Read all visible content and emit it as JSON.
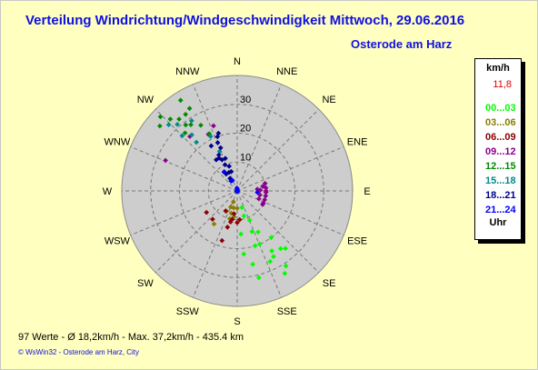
{
  "title": "Verteilung Windrichtung/Windgeschwindigkeit  Mittwoch, 29.06.2016",
  "location": "Osterode am Harz",
  "legend": {
    "unit": "km/h",
    "max": "11,8",
    "footer": "Uhr",
    "items": [
      {
        "label": "00...03",
        "color": "#00ff00"
      },
      {
        "label": "03...06",
        "color": "#8b7d00"
      },
      {
        "label": "06...09",
        "color": "#8b0000"
      },
      {
        "label": "09...12",
        "color": "#8b008b"
      },
      {
        "label": "12...15",
        "color": "#008b00"
      },
      {
        "label": "15...18",
        "color": "#008b8b"
      },
      {
        "label": "18...21",
        "color": "#00008b"
      },
      {
        "label": "21...24",
        "color": "#0000ff"
      }
    ]
  },
  "stats": "97 Werte   -   Ø 18,2km/h  -  Max. 37,2km/h   -   435.4 km",
  "footer": "© WsWin32   -   Osterode am Harz, City",
  "chart_data": {
    "type": "scatter",
    "subtype": "polar wind rose",
    "radial_unit": "km/h",
    "radial_ticks": [
      10,
      20,
      30
    ],
    "rmax": 40,
    "directions": [
      "N",
      "NNE",
      "NE",
      "ENE",
      "E",
      "ESE",
      "SE",
      "SSE",
      "S",
      "SSW",
      "SW",
      "WSW",
      "W",
      "WNW",
      "NW",
      "NNW"
    ],
    "series": [
      {
        "color": "#00ff00",
        "points": [
          [
            164,
            6
          ],
          [
            157,
            11
          ],
          [
            153,
            16
          ],
          [
            144,
            20
          ],
          [
            150,
            24
          ],
          [
            162,
            20
          ],
          [
            168,
            26
          ],
          [
            166,
            31
          ],
          [
            151,
            26
          ],
          [
            150,
            33
          ],
          [
            143,
            25
          ],
          [
            147,
            31
          ],
          [
            160,
            15
          ],
          [
            155,
            27
          ],
          [
            140,
            26
          ],
          [
            174,
            22
          ],
          [
            175,
            15
          ],
          [
            165,
            9
          ],
          [
            157,
            20
          ]
        ]
      },
      {
        "color": "#8b7d00",
        "points": [
          [
            199,
            4
          ],
          [
            192,
            6
          ],
          [
            208,
            8
          ],
          [
            215,
            14
          ],
          [
            195,
            8
          ],
          [
            180,
            6
          ],
          [
            187,
            9
          ],
          [
            195,
            10
          ],
          [
            202,
            6
          ]
        ]
      },
      {
        "color": "#8b0000",
        "points": [
          [
            221,
            13
          ],
          [
            235,
            13
          ],
          [
            188,
            8
          ],
          [
            197,
            18
          ],
          [
            210,
            8
          ],
          [
            175,
            10
          ],
          [
            190,
            10
          ],
          [
            195,
            13
          ],
          [
            180,
            11
          ],
          [
            192,
            11
          ]
        ]
      },
      {
        "color": "#8b008b",
        "points": [
          [
            333,
            22
          ],
          [
            319,
            25
          ],
          [
            340,
            24
          ],
          [
            108,
            10
          ],
          [
            84,
            10
          ],
          [
            115,
            10
          ],
          [
            100,
            8
          ],
          [
            85,
            7
          ],
          [
            90,
            10
          ],
          [
            75,
            10
          ],
          [
            88,
            8
          ],
          [
            118,
            10
          ],
          [
            100,
            10
          ],
          [
            93,
            10
          ],
          [
            80,
            9
          ],
          [
            110,
            8
          ],
          [
            293,
            27
          ]
        ]
      },
      {
        "color": "#008b00",
        "points": [
          [
            314,
            37
          ],
          [
            334,
            22
          ],
          [
            310,
            35
          ],
          [
            326,
            32
          ],
          [
            322,
            29
          ],
          [
            328,
            37
          ],
          [
            318,
            27
          ],
          [
            317,
            34
          ],
          [
            331,
            26
          ],
          [
            325,
            28
          ],
          [
            321,
            32
          ],
          [
            330,
            33
          ]
        ]
      },
      {
        "color": "#008b8b",
        "points": [
          [
            327,
            29
          ],
          [
            314,
            33
          ],
          [
            321,
            25
          ],
          [
            315,
            27
          ],
          [
            320,
            22
          ],
          [
            336,
            15
          ],
          [
            318,
            31
          ],
          [
            334,
            21
          ]
        ]
      },
      {
        "color": "#00008b",
        "points": [
          [
            340,
            20
          ],
          [
            333,
            14
          ],
          [
            335,
            10
          ],
          [
            330,
            5
          ],
          [
            336,
            7
          ],
          [
            339,
            16
          ],
          [
            326,
            13
          ],
          [
            334,
            12
          ],
          [
            331,
            13
          ],
          [
            330,
            18
          ],
          [
            342,
            9
          ],
          [
            327,
            7
          ],
          [
            342,
            21
          ],
          [
            338,
            18
          ],
          [
            326,
            8
          ],
          [
            343,
            7
          ],
          [
            340,
            12
          ]
        ]
      },
      {
        "color": "#0000ff",
        "points": [
          [
            355,
            1
          ],
          [
            336,
            4
          ],
          [
            328,
            4
          ],
          [
            325,
            8
          ],
          [
            94,
            7
          ]
        ]
      }
    ]
  }
}
